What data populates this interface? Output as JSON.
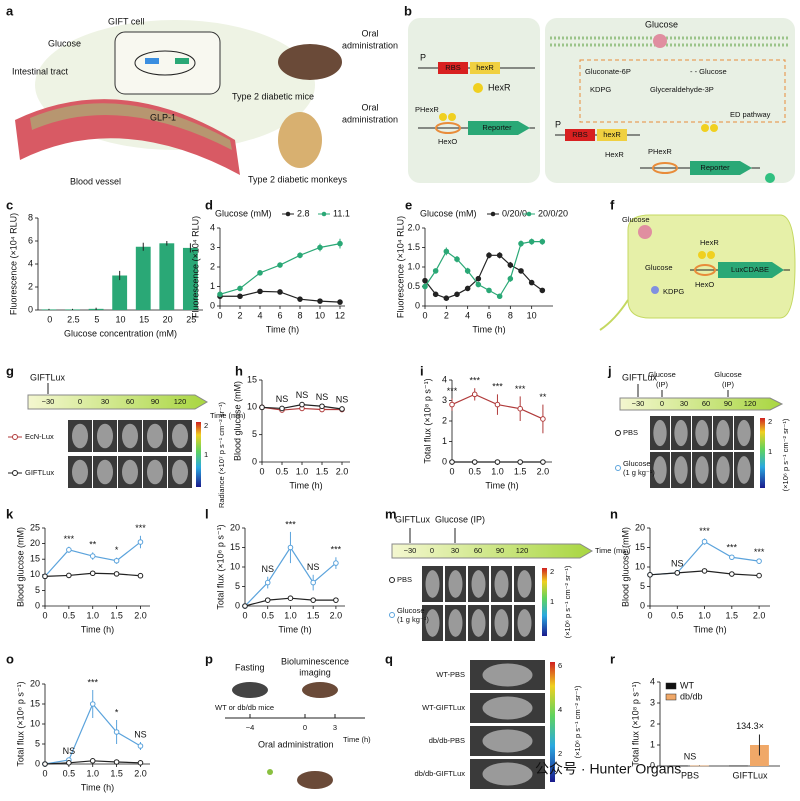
{
  "panel_labels": [
    "a",
    "b",
    "c",
    "d",
    "e",
    "f",
    "g",
    "h",
    "i",
    "j",
    "k",
    "l",
    "m",
    "n",
    "o",
    "p",
    "q",
    "r"
  ],
  "a": {
    "labels": [
      "GIFT cell",
      "Glucose",
      "Intestinal tract",
      "GLP-1",
      "Blood vessel",
      "Type 2 diabetic mice",
      "Oral",
      "administration",
      "Oral",
      "administration",
      "Type 2 diabetic monkeys"
    ]
  },
  "b": {
    "labels": [
      "P",
      "RBS",
      "hexR",
      "HexR",
      "PHexR",
      "HexO",
      "Reporter",
      "Glucose",
      "Gluconate-6P",
      "- - Glucose",
      "KDPG",
      "Glyceraldehyde-3P",
      "ED pathway",
      "P",
      "RBS",
      "hexR",
      "HexR",
      "PHexR",
      "Reporter"
    ]
  },
  "f": {
    "labels": [
      "Glucose",
      "Glucose",
      "KDPG",
      "HexR",
      "HexO",
      "LuxCDABE"
    ]
  },
  "g": {
    "timeline": [
      "GIFTLux",
      "−30",
      "0",
      "30",
      "60",
      "90",
      "120",
      "Time (min)"
    ],
    "colorbar_ticks": [
      "2",
      "1"
    ],
    "colorbar_label": "Radiance (×10⁷ p s⁻¹ cm⁻² sr⁻¹)"
  },
  "j": {
    "timeline": [
      "GIFTLux",
      "Glucose",
      "(IP)",
      "Glucose",
      "(IP)",
      "−30",
      "0",
      "30",
      "60",
      "90",
      "120"
    ],
    "colorbar_ticks": [
      "2",
      "1"
    ],
    "colorbar_label": "(×10⁶ p s⁻¹ cm⁻² sr⁻¹)"
  },
  "m": {
    "timeline": [
      "GIFTLux",
      "Glucose (IP)",
      "−30",
      "0",
      "30",
      "60",
      "90",
      "120",
      "Time (min)"
    ],
    "colorbar_ticks": [
      "2",
      "1"
    ],
    "colorbar_label": "(×10⁶ p s⁻¹ cm⁻² sr⁻¹)"
  },
  "p": {
    "labels": [
      "Fasting",
      "Bioluminescence",
      "imaging",
      "WT or db/db mice",
      "−4",
      "0",
      "3",
      "Time (h)",
      "Oral administration"
    ]
  },
  "q": {
    "rows": [
      "WT-PBS",
      "WT-GIFTLux",
      "db/db-PBS",
      "db/db-GIFTLux"
    ],
    "colorbar_ticks": [
      "6",
      "4",
      "2"
    ],
    "colorbar_label": "(×10⁶ p s⁻¹ cm⁻² sr⁻¹)"
  },
  "watermark": "公众号 · Hunter Organs",
  "chart_data": [
    {
      "type": "bar",
      "ylabel": "Fluorescence (×10⁴ RLU)",
      "xlabel": "Glucose concentration (mM)",
      "categories": [
        "0",
        "2.5",
        "5",
        "10",
        "15",
        "20",
        "25"
      ],
      "values": [
        0.05,
        0.05,
        0.1,
        3.0,
        5.5,
        5.8,
        5.4
      ],
      "errors": [
        0.05,
        0.05,
        0.1,
        0.4,
        0.35,
        0.2,
        0.4
      ],
      "color": "#2aa876",
      "ylim": [
        0,
        8
      ],
      "yticks": [
        0,
        2,
        4,
        6,
        8
      ]
    },
    {
      "type": "line",
      "ylabel": "Fluorescence (×10⁴ RLU)",
      "xlabel": "Time (h)",
      "legend_title": "Glucose (mM)",
      "x": [
        0,
        2,
        4,
        6,
        8,
        10,
        12
      ],
      "xlim": [
        0,
        12.5
      ],
      "xticks": [
        0,
        2,
        4,
        6,
        8,
        10,
        12
      ],
      "ylim": [
        0,
        4
      ],
      "yticks": [
        0,
        1,
        2,
        3,
        4
      ],
      "series": [
        {
          "name": "2.8",
          "color": "#222222",
          "values": [
            0.5,
            0.5,
            0.75,
            0.72,
            0.35,
            0.25,
            0.2
          ]
        },
        {
          "name": "11.1",
          "color": "#2aa876",
          "values": [
            0.6,
            0.9,
            1.7,
            2.1,
            2.6,
            3.0,
            3.2
          ],
          "errors": [
            0.05,
            0.05,
            0.1,
            0.1,
            0.15,
            0.2,
            0.25
          ]
        }
      ]
    },
    {
      "type": "line",
      "ylabel": "Fluorescence (×10⁴ RLU)",
      "xlabel": "Time (h)",
      "legend_title": "Glucose (mM)",
      "x": [
        0,
        1,
        2,
        3,
        4,
        5,
        6,
        7,
        8,
        9,
        10,
        11
      ],
      "xlim": [
        0,
        12
      ],
      "xticks": [
        0,
        2,
        4,
        6,
        8,
        10
      ],
      "ylim": [
        0,
        2.0
      ],
      "yticks": [
        0,
        0.5,
        {
          "value": 1.0,
          "label": "1.0"
        },
        1.5,
        {
          "value": 2.0,
          "label": "2.0"
        }
      ],
      "series": [
        {
          "name": "0/20/0",
          "color": "#222222",
          "values": [
            0.65,
            0.3,
            0.2,
            0.3,
            0.45,
            0.7,
            1.3,
            1.3,
            1.05,
            0.9,
            0.6,
            0.4
          ],
          "errors": [
            0.05,
            0.05,
            0.05,
            0.05,
            0.05,
            0.05,
            0.08,
            0.08,
            0.08,
            0.05,
            0.05,
            0.05
          ]
        },
        {
          "name": "20/0/20",
          "color": "#2aa876",
          "values": [
            0.5,
            0.9,
            1.4,
            1.2,
            0.9,
            0.55,
            0.4,
            0.25,
            0.7,
            1.6,
            1.65,
            1.65
          ],
          "errors": [
            0.05,
            0.05,
            0.1,
            0.08,
            0.08,
            0.05,
            0.05,
            0.05,
            0.08,
            0.08,
            0.08,
            0.08
          ]
        }
      ]
    },
    {
      "type": "line",
      "ylabel": "Blood glucose (mM)",
      "xlabel": "Time (h)",
      "markers": "open",
      "x": [
        0,
        0.5,
        1,
        1.5,
        2
      ],
      "xlim": [
        0,
        2.2
      ],
      "xticks": [
        0,
        0.5,
        {
          "value": 1.0,
          "label": "1.0"
        },
        1.5,
        {
          "value": 2.0,
          "label": "2.0"
        }
      ],
      "ylim": [
        0,
        15
      ],
      "yticks": [
        0,
        5,
        10,
        15
      ],
      "annotations": [
        null,
        "NS",
        "NS",
        "NS",
        "NS"
      ],
      "series": [
        {
          "name": "EcN-Lux",
          "color": "#b03a3a",
          "values": [
            10,
            9.5,
            9.8,
            9.6,
            9.6
          ],
          "errors": [
            0.3,
            0.3,
            0.3,
            0.3,
            0.3
          ]
        },
        {
          "name": "GIFTLux",
          "color": "#222222",
          "values": [
            10,
            9.8,
            10.5,
            10.2,
            9.7
          ],
          "errors": [
            0.3,
            0.3,
            0.4,
            0.3,
            0.3
          ]
        }
      ]
    },
    {
      "type": "line",
      "ylabel": "Total flux (×10⁸ p s⁻¹)",
      "xlabel": "Time (h)",
      "markers": "open",
      "x": [
        0,
        0.5,
        1,
        1.5,
        2
      ],
      "xlim": [
        0,
        2.2
      ],
      "xticks": [
        0,
        0.5,
        {
          "value": 1.0,
          "label": "1.0"
        },
        1.5,
        {
          "value": 2.0,
          "label": "2.0"
        }
      ],
      "ylim": [
        0,
        4
      ],
      "yticks": [
        0,
        1,
        2,
        3,
        4
      ],
      "annotations": [
        "***",
        "***",
        "***",
        "***",
        "**"
      ],
      "series": [
        {
          "color": "#b03a3a",
          "values": [
            2.8,
            3.3,
            2.8,
            2.6,
            2.1
          ],
          "errors": [
            0.3,
            0.3,
            0.5,
            0.6,
            0.7
          ]
        },
        {
          "color": "#222222",
          "values": [
            0,
            0,
            0,
            0,
            0
          ]
        }
      ]
    },
    {
      "type": "line",
      "ylabel": "Blood glucose (mM)",
      "xlabel": "Time (h)",
      "markers": "open",
      "x": [
        0,
        0.5,
        1,
        1.5,
        2
      ],
      "xlim": [
        0,
        2.2
      ],
      "xticks": [
        0,
        0.5,
        {
          "value": 1.0,
          "label": "1.0"
        },
        1.5,
        {
          "value": 2.0,
          "label": "2.0"
        }
      ],
      "ylim": [
        0,
        25
      ],
      "yticks": [
        0,
        5,
        10,
        15,
        20,
        25
      ],
      "annotations": [
        null,
        "***",
        "**",
        "*",
        "***"
      ],
      "series": [
        {
          "name": "Glucose (1 g kg⁻¹)",
          "color": "#5ba3dc",
          "values": [
            9.5,
            18,
            16,
            14.5,
            20.5
          ],
          "errors": [
            0.5,
            1,
            1.2,
            1,
            2
          ]
        },
        {
          "name": "PBS",
          "color": "#222222",
          "values": [
            9.5,
            9.8,
            10.5,
            10.3,
            9.7
          ],
          "errors": [
            0.3,
            0.3,
            0.3,
            0.3,
            0.3
          ]
        }
      ]
    },
    {
      "type": "line",
      "ylabel": "Total flux (×10⁶ p s⁻¹)",
      "xlabel": "Time (h)",
      "markers": "open",
      "x": [
        0,
        0.5,
        1,
        1.5,
        2
      ],
      "xlim": [
        0,
        2.2
      ],
      "xticks": [
        0,
        0.5,
        {
          "value": 1.0,
          "label": "1.0"
        },
        1.5,
        {
          "value": 2.0,
          "label": "2.0"
        }
      ],
      "ylim": [
        0,
        20
      ],
      "yticks": [
        0,
        5,
        10,
        15,
        20
      ],
      "annotations": [
        null,
        "NS",
        "***",
        "NS",
        "***"
      ],
      "series": [
        {
          "color": "#5ba3dc",
          "values": [
            0,
            6,
            15,
            6,
            11
          ],
          "errors": [
            0,
            1.5,
            4,
            2,
            1.5
          ]
        },
        {
          "color": "#222222",
          "values": [
            0,
            1.5,
            2,
            1.5,
            1.5
          ]
        }
      ]
    },
    {
      "type": "line",
      "ylabel": "Blood glucose (mM)",
      "xlabel": "Time (h)",
      "markers": "open",
      "x": [
        0,
        0.5,
        1,
        1.5,
        2
      ],
      "xlim": [
        0,
        2.2
      ],
      "xticks": [
        0,
        0.5,
        {
          "value": 1.0,
          "label": "1.0"
        },
        1.5,
        {
          "value": 2.0,
          "label": "2.0"
        }
      ],
      "ylim": [
        0,
        20
      ],
      "yticks": [
        0,
        5,
        10,
        15,
        20
      ],
      "annotations": [
        null,
        "NS",
        "***",
        "***",
        "***"
      ],
      "series": [
        {
          "name": "Glucose (1 g kg⁻¹)",
          "color": "#5ba3dc",
          "values": [
            8,
            8.5,
            16.5,
            12.5,
            11.5
          ],
          "errors": [
            0.3,
            0.4,
            0.8,
            0.5,
            0.4
          ]
        },
        {
          "name": "PBS",
          "color": "#222222",
          "values": [
            8,
            8.5,
            9,
            8.2,
            7.8
          ],
          "errors": [
            0.2,
            0.2,
            0.2,
            0.2,
            0.2
          ]
        }
      ]
    },
    {
      "type": "line",
      "ylabel": "Total flux (×10⁶ p s⁻¹)",
      "xlabel": "Time (h)",
      "markers": "open",
      "x": [
        0,
        0.5,
        1,
        1.5,
        2
      ],
      "xlim": [
        0,
        2.2
      ],
      "xticks": [
        0,
        0.5,
        {
          "value": 1.0,
          "label": "1.0"
        },
        1.5,
        {
          "value": 2.0,
          "label": "2.0"
        }
      ],
      "ylim": [
        0,
        20
      ],
      "yticks": [
        0,
        5,
        10,
        15,
        20
      ],
      "annotations": [
        null,
        "NS",
        "***",
        "*",
        "NS"
      ],
      "series": [
        {
          "color": "#5ba3dc",
          "values": [
            0,
            1,
            15,
            8,
            4.5
          ],
          "errors": [
            0,
            0.3,
            3.5,
            3,
            1
          ]
        },
        {
          "color": "#222222",
          "values": [
            0,
            0.3,
            0.8,
            0.5,
            0.3
          ]
        }
      ]
    },
    {
      "type": "bar",
      "ylabel": "Total flux (×10⁸ p s⁻¹)",
      "legend": "upper left",
      "categories": [
        "PBS",
        "GIFTLux"
      ],
      "ylim": [
        0,
        4
      ],
      "yticks": [
        0,
        1,
        2,
        3,
        4
      ],
      "annotations": [
        "NS",
        "134.3×"
      ],
      "series": [
        {
          "name": "WT",
          "color": "#111111",
          "values": [
            0.02,
            0.02
          ]
        },
        {
          "name": "db/db",
          "color": "#f0a868",
          "values": [
            0.02,
            1.0
          ],
          "errors": [
            0.01,
            0.5
          ]
        }
      ]
    }
  ]
}
